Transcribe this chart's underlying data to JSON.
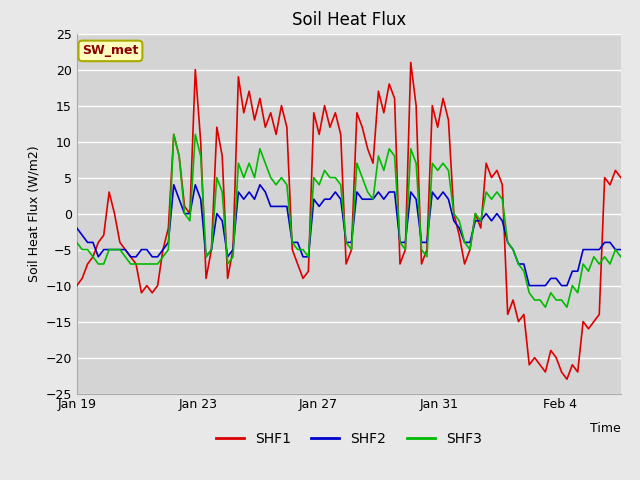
{
  "title": "Soil Heat Flux",
  "ylabel": "Soil Heat Flux (W/m2)",
  "xlabel": "Time",
  "ylim": [
    -25,
    25
  ],
  "fig_bg_color": "#e8e8e8",
  "plot_bg_color": "#d4d4d4",
  "grid_color": "#ffffff",
  "colors": {
    "SHF1": "#dd0000",
    "SHF2": "#0000cc",
    "SHF3": "#00bb00"
  },
  "station_label": "SW_met",
  "x_tick_labels": [
    "Jan 19",
    "Jan 23",
    "Jan 27",
    "Jan 31",
    "Feb 4"
  ],
  "SHF1": [
    -10,
    -9,
    -7,
    -6,
    -4,
    -3,
    3,
    0,
    -4,
    -5,
    -6,
    -7,
    -11,
    -10,
    -11,
    -10,
    -5,
    -2,
    11,
    8,
    1,
    0,
    20,
    10,
    -9,
    -5,
    12,
    8,
    -9,
    -5,
    19,
    14,
    17,
    13,
    16,
    12,
    14,
    11,
    15,
    12,
    -5,
    -7,
    -9,
    -8,
    14,
    11,
    15,
    12,
    14,
    11,
    -7,
    -5,
    14,
    12,
    9,
    7,
    17,
    14,
    18,
    16,
    -7,
    -5,
    21,
    15,
    -7,
    -5,
    15,
    12,
    16,
    13,
    0,
    -3,
    -7,
    -5,
    0,
    -2,
    7,
    5,
    6,
    4,
    -14,
    -12,
    -15,
    -14,
    -21,
    -20,
    -21,
    -22,
    -19,
    -20,
    -22,
    -23,
    -21,
    -22,
    -15,
    -16,
    -15,
    -14,
    5,
    4,
    6,
    5
  ],
  "SHF2": [
    -2,
    -3,
    -4,
    -4,
    -6,
    -5,
    -5,
    -5,
    -5,
    -5,
    -6,
    -6,
    -5,
    -5,
    -6,
    -6,
    -5,
    -4,
    4,
    2,
    0,
    0,
    4,
    2,
    -6,
    -5,
    0,
    -1,
    -6,
    -5,
    3,
    2,
    3,
    2,
    4,
    3,
    1,
    1,
    1,
    1,
    -4,
    -4,
    -6,
    -6,
    2,
    1,
    2,
    2,
    3,
    2,
    -4,
    -4,
    3,
    2,
    2,
    2,
    3,
    2,
    3,
    3,
    -4,
    -4,
    3,
    2,
    -4,
    -4,
    3,
    2,
    3,
    2,
    -1,
    -2,
    -4,
    -4,
    -1,
    -1,
    0,
    -1,
    0,
    -1,
    -4,
    -5,
    -7,
    -7,
    -10,
    -10,
    -10,
    -10,
    -9,
    -9,
    -10,
    -10,
    -8,
    -8,
    -5,
    -5,
    -5,
    -5,
    -4,
    -4,
    -5,
    -5
  ],
  "SHF3": [
    -4,
    -5,
    -5,
    -6,
    -7,
    -7,
    -5,
    -5,
    -5,
    -6,
    -7,
    -7,
    -7,
    -7,
    -7,
    -7,
    -6,
    -5,
    11,
    8,
    0,
    -1,
    11,
    8,
    -6,
    -5,
    5,
    3,
    -7,
    -6,
    7,
    5,
    7,
    5,
    9,
    7,
    5,
    4,
    5,
    4,
    -4,
    -5,
    -5,
    -6,
    5,
    4,
    6,
    5,
    5,
    4,
    -4,
    -5,
    7,
    5,
    3,
    2,
    8,
    6,
    9,
    8,
    -4,
    -5,
    9,
    7,
    -5,
    -6,
    7,
    6,
    7,
    6,
    0,
    -1,
    -4,
    -5,
    0,
    -1,
    3,
    2,
    3,
    2,
    -4,
    -5,
    -7,
    -8,
    -11,
    -12,
    -12,
    -13,
    -11,
    -12,
    -12,
    -13,
    -10,
    -11,
    -7,
    -8,
    -6,
    -7,
    -6,
    -7,
    -5,
    -6
  ]
}
